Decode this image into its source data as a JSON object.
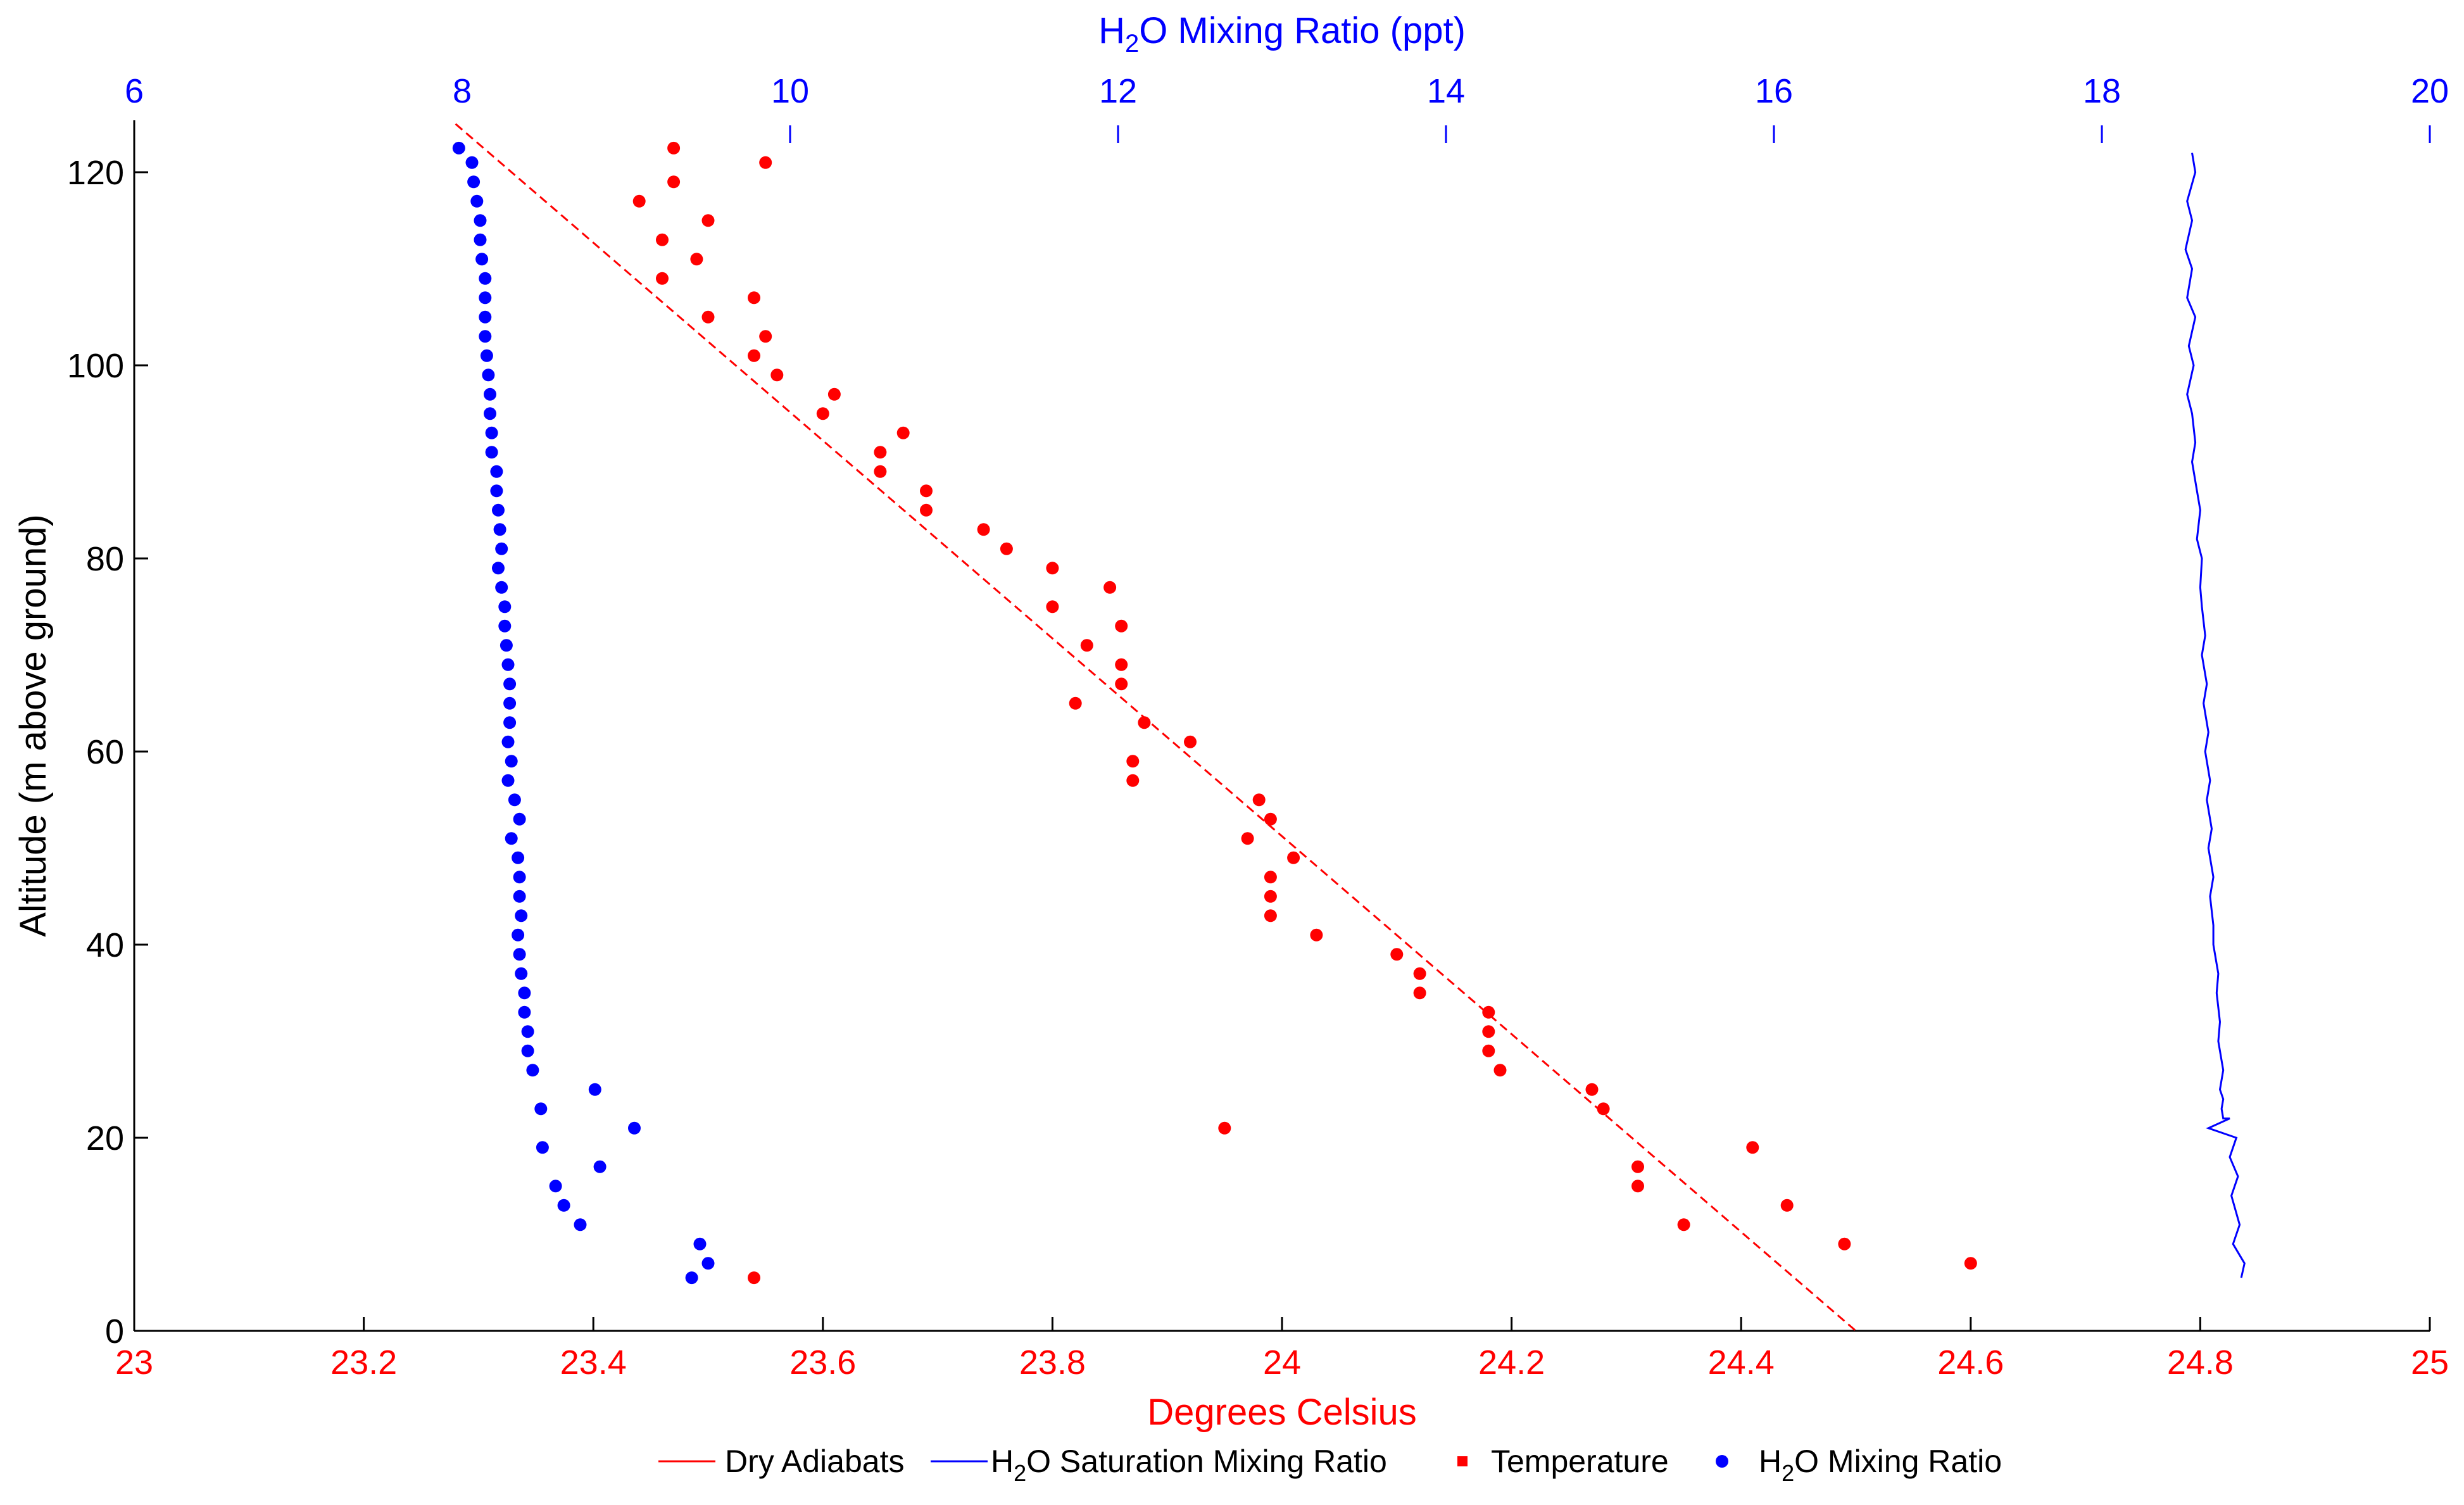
{
  "chart_data": {
    "type": "scatter",
    "colors": {
      "temperature": "#ff0000",
      "mixing_ratio": "#0000ff",
      "dry_adiabats": "#ff0000",
      "saturation": "#0000ff",
      "axis": "#000000"
    },
    "bottom_axis": {
      "label": "Degrees Celsius",
      "range": [
        23,
        25
      ],
      "ticks": [
        "23",
        "23.2",
        "23.4",
        "23.6",
        "23.8",
        "24",
        "24.2",
        "24.4",
        "24.6",
        "24.8",
        "25"
      ]
    },
    "top_axis": {
      "label_prefix": "H",
      "label_sub": "2",
      "label_suffix": "O Mixing Ratio (ppt)",
      "range": [
        6,
        20
      ],
      "ticks": [
        "6",
        "8",
        "10",
        "12",
        "14",
        "16",
        "18",
        "20"
      ]
    },
    "left_axis": {
      "label": "Altitude (m above ground)",
      "range": [
        0,
        125
      ],
      "ticks": [
        "0",
        "20",
        "40",
        "60",
        "80",
        "100",
        "120"
      ]
    },
    "legend": [
      {
        "key": "dry_adiabats",
        "marker": "dashed-line",
        "prefix": "Dry Adiabats",
        "sub": "",
        "suffix": ""
      },
      {
        "key": "saturation",
        "marker": "line",
        "prefix": "H",
        "sub": "2",
        "suffix": "O Saturation Mixing Ratio"
      },
      {
        "key": "temperature",
        "marker": "square",
        "prefix": "Temperature",
        "sub": "",
        "suffix": ""
      },
      {
        "key": "mixing_ratio",
        "marker": "dot",
        "prefix": "H",
        "sub": "2",
        "suffix": "O Mixing Ratio"
      }
    ],
    "series": [
      {
        "name": "Dry Adiabats",
        "kind": "dashed-line",
        "axis": "celsius",
        "x": [
          23.28,
          24.5
        ],
        "y": [
          125,
          0
        ]
      },
      {
        "name": "H2O Saturation Mixing Ratio",
        "kind": "line",
        "axis": "ppt",
        "x": [
          18.55,
          18.57,
          18.52,
          18.55,
          18.51,
          18.55,
          18.52,
          18.57,
          18.53,
          18.56,
          18.52,
          18.55,
          18.57,
          18.55,
          18.58,
          18.6,
          18.58,
          18.61,
          18.6,
          18.61,
          18.63,
          18.61,
          18.64,
          18.62,
          18.65,
          18.63,
          18.66,
          18.64,
          18.67,
          18.65,
          18.68,
          18.66,
          18.68,
          18.68,
          18.71,
          18.7,
          18.72,
          18.71,
          18.74,
          18.72,
          18.74,
          18.73,
          18.74,
          18.78,
          18.65,
          18.82,
          18.78,
          18.83,
          18.79,
          18.84,
          18.8,
          18.87,
          18.85
        ],
        "y": [
          122,
          120,
          117,
          115,
          112,
          110,
          107,
          105,
          102,
          100,
          97,
          95,
          92,
          90,
          87,
          85,
          82,
          80,
          77,
          75,
          72,
          70,
          67,
          65,
          62,
          60,
          57,
          55,
          52,
          50,
          47,
          45,
          42,
          40,
          37,
          35,
          32,
          30,
          27,
          25,
          24,
          23,
          22,
          22,
          21,
          20,
          18,
          16,
          14,
          11,
          9,
          7,
          5.5
        ]
      },
      {
        "name": "Temperature",
        "kind": "scatter",
        "axis": "celsius",
        "x": [
          23.54,
          24.6,
          24.49,
          24.44,
          24.35,
          24.31,
          24.31,
          24.41,
          23.95,
          24.28,
          24.27,
          24.19,
          24.18,
          24.18,
          24.18,
          24.12,
          24.12,
          24.1,
          24.03,
          23.99,
          23.99,
          23.99,
          24.01,
          23.97,
          23.99,
          23.98,
          23.87,
          23.87,
          23.92,
          23.88,
          23.82,
          23.86,
          23.86,
          23.83,
          23.86,
          23.8,
          23.85,
          23.8,
          23.76,
          23.74,
          23.69,
          23.69,
          23.65,
          23.65,
          23.67,
          23.6,
          23.61,
          23.56,
          23.54,
          23.55,
          23.5,
          23.54,
          23.46,
          23.49,
          23.46,
          23.5,
          23.44,
          23.47,
          23.55,
          23.47
        ],
        "y": [
          5.5,
          7,
          9,
          13,
          11,
          15,
          17,
          19,
          21,
          23,
          25,
          27,
          29,
          31,
          33,
          35,
          37,
          39,
          41,
          43,
          45,
          47,
          49,
          51,
          53,
          55,
          57,
          59,
          61,
          63,
          65,
          67,
          69,
          71,
          73,
          75,
          77,
          79,
          81,
          83,
          85,
          87,
          89,
          91,
          93,
          95,
          97,
          99,
          101,
          103,
          105,
          107,
          109,
          111,
          113,
          115,
          117,
          119,
          121,
          122.5
        ]
      },
      {
        "name": "H2O Mixing Ratio",
        "kind": "scatter",
        "axis": "ppt",
        "x": [
          9.4,
          9.5,
          9.45,
          8.72,
          9.05,
          8.62,
          8.57,
          8.84,
          8.49,
          8.81,
          8.48,
          8.43,
          8.4,
          8.4,
          8.38,
          8.38,
          8.36,
          8.35,
          8.34,
          8.36,
          8.35,
          8.35,
          8.34,
          8.3,
          8.35,
          8.32,
          8.28,
          8.3,
          8.28,
          8.29,
          8.29,
          8.29,
          8.28,
          8.27,
          8.26,
          8.26,
          8.24,
          8.22,
          8.24,
          8.23,
          8.22,
          8.21,
          8.21,
          8.18,
          8.18,
          8.17,
          8.17,
          8.16,
          8.15,
          8.14,
          8.14,
          8.14,
          8.14,
          8.12,
          8.11,
          8.11,
          8.09,
          8.07,
          8.06,
          7.98
        ],
        "y": [
          5.5,
          7,
          9,
          11,
          21,
          13,
          15,
          17,
          19,
          25,
          23,
          27,
          29,
          31,
          33,
          35,
          37,
          39,
          41,
          43,
          45,
          47,
          49,
          51,
          53,
          55,
          57,
          59,
          61,
          63,
          65,
          67,
          69,
          71,
          73,
          75,
          77,
          79,
          81,
          83,
          85,
          87,
          89,
          91,
          93,
          95,
          97,
          99,
          101,
          103,
          105,
          107,
          109,
          111,
          113,
          115,
          117,
          119,
          121,
          122.5
        ]
      }
    ]
  }
}
